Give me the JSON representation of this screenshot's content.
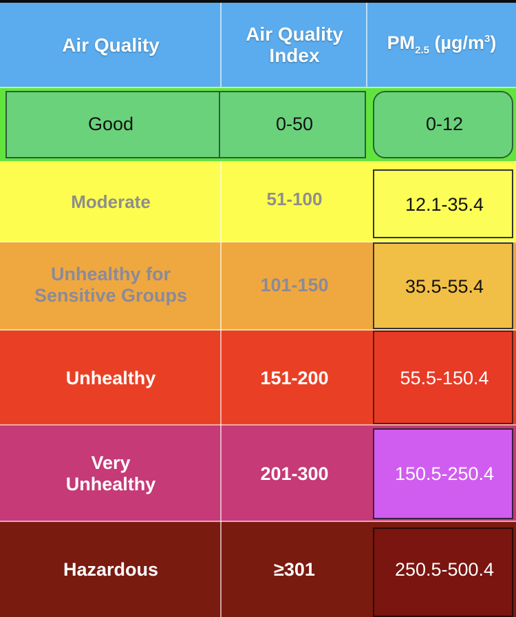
{
  "header": {
    "air_quality": "Air Quality",
    "aqi_line1": "Air Quality",
    "aqi_line2": "Index",
    "pm_prefix": "PM",
    "pm_sub": "2.5",
    "pm_unit_open": " (µg/m",
    "pm_sup": "3",
    "pm_unit_close": ")"
  },
  "rows": [
    {
      "level": "Good",
      "aqi": "0-50",
      "pm": "0-12",
      "row_color": "#62e43e",
      "pm_color": "#6ad27b"
    },
    {
      "level": "Moderate",
      "aqi": "51-100",
      "pm": "12.1-35.4",
      "row_color": "#fdfd4f",
      "pm_color": "#fdfd58"
    },
    {
      "level_line1": "Unhealthy for",
      "level_line2": "Sensitive Groups",
      "aqi": "101-150",
      "pm": "35.5-55.4",
      "row_color": "#efa83f",
      "pm_color": "#f1bf45"
    },
    {
      "level": "Unhealthy",
      "aqi": "151-200",
      "pm": "55.5-150.4",
      "row_color": "#e94025",
      "pm_color": "#e73b26"
    },
    {
      "level_line1": "Very",
      "level_line2": "Unhealthy",
      "aqi": "201-300",
      "pm": "150.5-250.4",
      "row_color": "#c53a77",
      "pm_color": "#d05df0"
    },
    {
      "level": "Hazardous",
      "aqi": "≥301",
      "pm": "250.5-500.4",
      "row_color": "#7a1b10",
      "pm_color": "#7a1510"
    }
  ]
}
